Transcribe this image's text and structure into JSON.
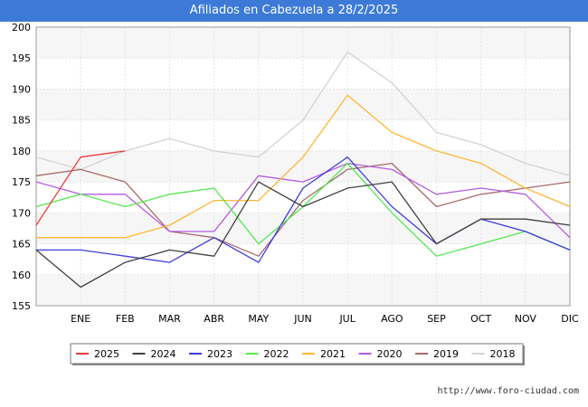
{
  "header": {
    "title": "Afiliados en Cabezuela a 28/2/2025"
  },
  "footer": {
    "url": "http://www.foro-ciudad.com"
  },
  "chart_data": {
    "type": "line",
    "title": "Afiliados en Cabezuela a 28/2/2025",
    "categories": [
      "",
      "ENE",
      "FEB",
      "MAR",
      "ABR",
      "MAY",
      "JUN",
      "JUL",
      "AGO",
      "SEP",
      "OCT",
      "NOV",
      "DIC"
    ],
    "ylim": [
      155,
      200
    ],
    "yticks": [
      155,
      160,
      165,
      170,
      175,
      180,
      185,
      190,
      195,
      200
    ],
    "grid": true,
    "legend_position": "bottom",
    "series": [
      {
        "name": "2025",
        "color": "#ee3b3b",
        "values": [
          168,
          179,
          180,
          null,
          null,
          null,
          null,
          null,
          null,
          null,
          null,
          null,
          null
        ]
      },
      {
        "name": "2024",
        "color": "#404040",
        "values": [
          164,
          158,
          162,
          164,
          163,
          175,
          171,
          174,
          175,
          165,
          169,
          169,
          168
        ]
      },
      {
        "name": "2023",
        "color": "#3c3cdc",
        "values": [
          164,
          164,
          163,
          162,
          166,
          162,
          174,
          179,
          171,
          165,
          169,
          167,
          164
        ]
      },
      {
        "name": "2022",
        "color": "#52e852",
        "values": [
          171,
          173,
          171,
          173,
          174,
          165,
          171,
          178,
          170,
          163,
          165,
          167,
          164
        ]
      },
      {
        "name": "2021",
        "color": "#ffb733",
        "values": [
          166,
          166,
          166,
          168,
          172,
          172,
          179,
          189,
          183,
          180,
          178,
          174,
          171
        ]
      },
      {
        "name": "2020",
        "color": "#b45be3",
        "values": [
          175,
          173,
          173,
          167,
          167,
          176,
          175,
          178,
          177,
          173,
          174,
          173,
          166
        ]
      },
      {
        "name": "2019",
        "color": "#a86a6a",
        "values": [
          176,
          177,
          175,
          167,
          166,
          163,
          172,
          177,
          178,
          171,
          173,
          174,
          175
        ]
      },
      {
        "name": "2018",
        "color": "#d3d3d3",
        "values": [
          179,
          177,
          180,
          182,
          180,
          179,
          185,
          196,
          191,
          183,
          181,
          178,
          176
        ]
      }
    ]
  }
}
